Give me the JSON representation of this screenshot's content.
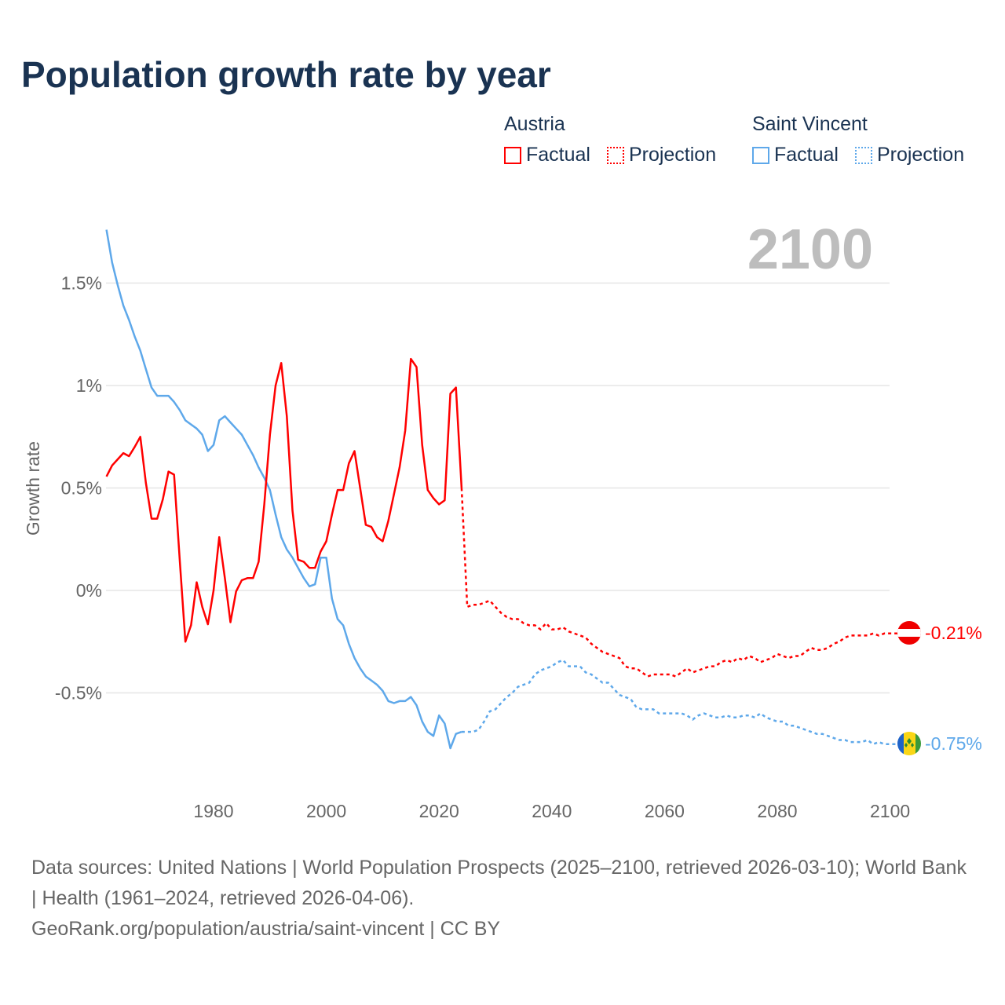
{
  "chart_data": {
    "type": "line",
    "title": "Population growth rate by year",
    "ylabel": "Growth rate",
    "xlabel": "",
    "xlim": [
      1961,
      2100
    ],
    "ylim": [
      -0.95,
      1.8
    ],
    "x_ticks": [
      1980,
      2000,
      2020,
      2040,
      2060,
      2080,
      2100
    ],
    "x_tick_labels": [
      "1980",
      "2000",
      "2020",
      "2040",
      "2060",
      "2080",
      "2100"
    ],
    "y_ticks": [
      1.5,
      1,
      0.5,
      0,
      -0.5
    ],
    "y_tick_labels": [
      "1.5%",
      "1%",
      "0.5%",
      "0%",
      "-0.5%"
    ],
    "grid": true,
    "year_label": "2100",
    "legend_position": "top-right",
    "legend": {
      "groups": [
        {
          "name": "Austria",
          "items": [
            "Factual",
            "Projection"
          ],
          "color": "#ff0000"
        },
        {
          "name": "Saint Vincent",
          "items": [
            "Factual",
            "Projection"
          ],
          "color": "#5ea8ea"
        }
      ]
    },
    "series": [
      {
        "name": "Austria",
        "color": "#ff0000",
        "end_label": "-0.21%",
        "factual_start": 1961,
        "factual": [
          0.556,
          0.61,
          0.64,
          0.67,
          0.655,
          0.7,
          0.75,
          0.525,
          0.35,
          0.35,
          0.445,
          0.58,
          0.565,
          0.15,
          -0.25,
          -0.17,
          0.04,
          -0.08,
          -0.165,
          0.0,
          0.26,
          0.06,
          -0.155,
          -0.005,
          0.05,
          0.06,
          0.06,
          0.14,
          0.42,
          0.76,
          1.0,
          1.11,
          0.85,
          0.39,
          0.15,
          0.14,
          0.11,
          0.11,
          0.19,
          0.24,
          0.37,
          0.49,
          0.49,
          0.62,
          0.68,
          0.5,
          0.32,
          0.31,
          0.26,
          0.24,
          0.34,
          0.47,
          0.6,
          0.78,
          1.13,
          1.09,
          0.71,
          0.49,
          0.45,
          0.42,
          0.44,
          0.96,
          0.99,
          0.5
        ],
        "projection_start": 2025,
        "projection": [
          -0.08,
          -0.07,
          -0.07,
          -0.06,
          -0.05,
          -0.08,
          -0.11,
          -0.13,
          -0.14,
          -0.14,
          -0.16,
          -0.17,
          -0.17,
          -0.19,
          -0.16,
          -0.19,
          -0.19,
          -0.18,
          -0.2,
          -0.21,
          -0.22,
          -0.23,
          -0.26,
          -0.28,
          -0.3,
          -0.31,
          -0.32,
          -0.33,
          -0.37,
          -0.38,
          -0.38,
          -0.4,
          -0.42,
          -0.41,
          -0.41,
          -0.41,
          -0.41,
          -0.42,
          -0.4,
          -0.38,
          -0.4,
          -0.39,
          -0.38,
          -0.37,
          -0.37,
          -0.35,
          -0.34,
          -0.35,
          -0.33,
          -0.34,
          -0.32,
          -0.33,
          -0.35,
          -0.34,
          -0.33,
          -0.31,
          -0.32,
          -0.33,
          -0.32,
          -0.32,
          -0.3,
          -0.28,
          -0.29,
          -0.29,
          -0.28,
          -0.26,
          -0.25,
          -0.23,
          -0.22,
          -0.22,
          -0.22,
          -0.22,
          -0.21,
          -0.22,
          -0.21,
          -0.21
        ]
      },
      {
        "name": "Saint Vincent",
        "color": "#5ea8ea",
        "end_label": "-0.75%",
        "factual_start": 1961,
        "factual": [
          1.76,
          1.6,
          1.49,
          1.39,
          1.32,
          1.24,
          1.17,
          1.08,
          0.99,
          0.95,
          0.95,
          0.95,
          0.92,
          0.88,
          0.83,
          0.81,
          0.79,
          0.76,
          0.68,
          0.71,
          0.83,
          0.85,
          0.82,
          0.79,
          0.76,
          0.71,
          0.66,
          0.6,
          0.55,
          0.49,
          0.37,
          0.26,
          0.2,
          0.16,
          0.11,
          0.06,
          0.02,
          0.03,
          0.16,
          0.16,
          -0.04,
          -0.14,
          -0.17,
          -0.26,
          -0.33,
          -0.38,
          -0.42,
          -0.44,
          -0.46,
          -0.49,
          -0.54,
          -0.55,
          -0.54,
          -0.54,
          -0.52,
          -0.56,
          -0.64,
          -0.69,
          -0.71,
          -0.61,
          -0.65,
          -0.77,
          -0.7,
          -0.69
        ],
        "projection_start": 2025,
        "projection": [
          -0.69,
          -0.69,
          -0.68,
          -0.64,
          -0.59,
          -0.58,
          -0.55,
          -0.52,
          -0.5,
          -0.47,
          -0.46,
          -0.45,
          -0.41,
          -0.39,
          -0.38,
          -0.37,
          -0.35,
          -0.34,
          -0.37,
          -0.37,
          -0.37,
          -0.4,
          -0.41,
          -0.43,
          -0.45,
          -0.45,
          -0.48,
          -0.51,
          -0.52,
          -0.53,
          -0.57,
          -0.58,
          -0.58,
          -0.58,
          -0.6,
          -0.6,
          -0.6,
          -0.6,
          -0.6,
          -0.61,
          -0.63,
          -0.61,
          -0.6,
          -0.61,
          -0.62,
          -0.62,
          -0.61,
          -0.62,
          -0.62,
          -0.61,
          -0.61,
          -0.62,
          -0.6,
          -0.62,
          -0.63,
          -0.64,
          -0.64,
          -0.66,
          -0.66,
          -0.67,
          -0.68,
          -0.69,
          -0.7,
          -0.7,
          -0.71,
          -0.72,
          -0.73,
          -0.73,
          -0.74,
          -0.74,
          -0.74,
          -0.73,
          -0.75,
          -0.74,
          -0.75,
          -0.75
        ]
      }
    ]
  },
  "footer": {
    "sources": "Data sources: United Nations | World Population Prospects (2025–2100, retrieved 2026-03-10); World Bank | Health (1961–2024, retrieved 2026-04-06).",
    "credit": "GeoRank.org/population/austria/saint-vincent | CC BY"
  }
}
